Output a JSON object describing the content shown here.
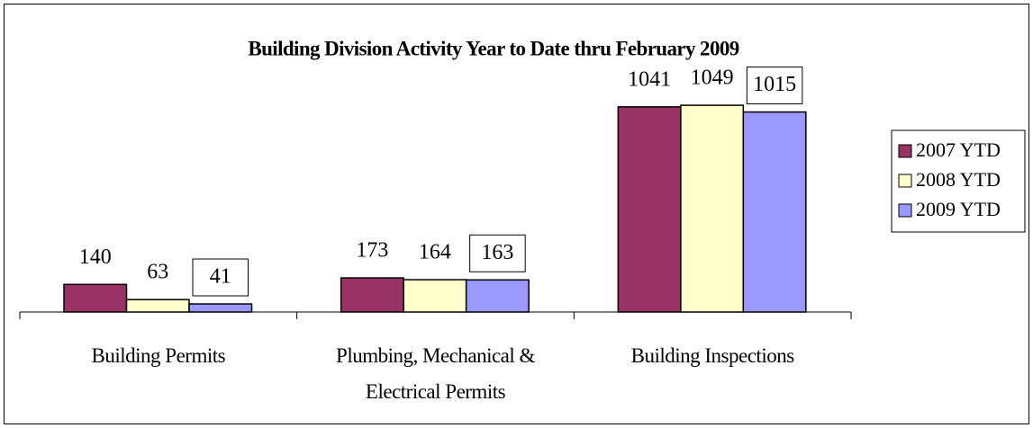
{
  "chart_data": {
    "type": "bar",
    "title": "Building Division Activity Year to Date thru February 2009",
    "categories": [
      "Building Permits",
      "Plumbing, Mechanical & Electrical Permits",
      "Building Inspections"
    ],
    "series": [
      {
        "name": "2007 YTD",
        "color": "#993366",
        "values": [
          140,
          173,
          1041
        ]
      },
      {
        "name": "2008 YTD",
        "color": "#ffffcc",
        "values": [
          63,
          164,
          1049
        ]
      },
      {
        "name": "2009 YTD",
        "color": "#9999ff",
        "values": [
          41,
          163,
          1015
        ]
      }
    ],
    "ylim": [
      0,
      1200
    ],
    "legend": "right"
  }
}
